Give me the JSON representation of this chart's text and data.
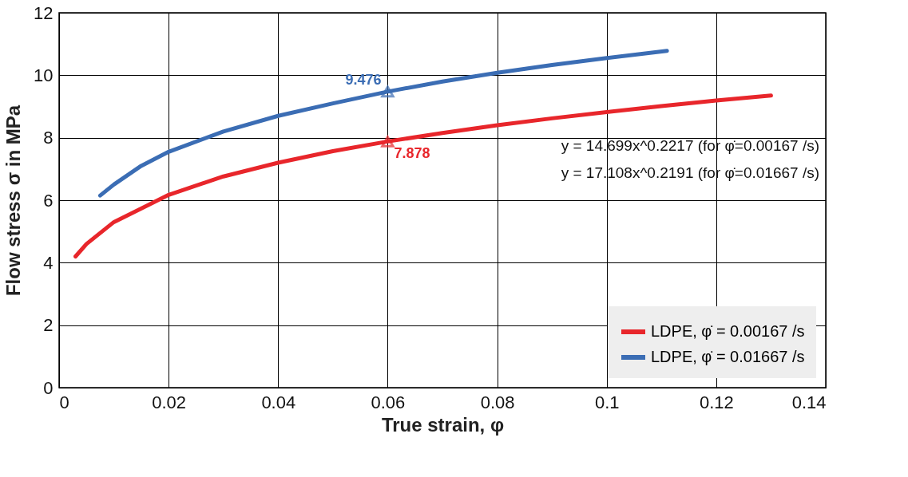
{
  "chart_data": {
    "type": "line",
    "xlabel": "True strain, φ",
    "ylabel": "Flow stress σ in MPa",
    "xlim": [
      0,
      0.14
    ],
    "xticks": [
      0,
      0.02,
      0.04,
      0.06,
      0.08,
      0.1,
      0.12,
      0.14
    ],
    "ylim": [
      0,
      12
    ],
    "yticks": [
      0,
      2,
      4,
      6,
      8,
      10,
      12
    ],
    "grid": true,
    "legend": "bottom right",
    "line_style": "solid",
    "series": [
      {
        "name": "LDPE, φ̇ = 0.00167 /s",
        "color": "#e8262b",
        "x": [
          0.003,
          0.005,
          0.01,
          0.02,
          0.03,
          0.04,
          0.05,
          0.06,
          0.07,
          0.08,
          0.09,
          0.1,
          0.11,
          0.12,
          0.13
        ],
        "values": [
          4.2,
          4.6,
          5.3,
          6.17,
          6.76,
          7.2,
          7.57,
          7.88,
          8.15,
          8.4,
          8.62,
          8.82,
          9.01,
          9.19,
          9.35
        ]
      },
      {
        "name": "LDPE, φ̇ = 0.01667 /s",
        "color": "#3b6db4",
        "x": [
          0.0075,
          0.01,
          0.015,
          0.02,
          0.03,
          0.04,
          0.05,
          0.06,
          0.07,
          0.08,
          0.09,
          0.1,
          0.111
        ],
        "values": [
          6.15,
          6.5,
          7.1,
          7.55,
          8.2,
          8.7,
          9.1,
          9.476,
          9.8,
          10.08,
          10.33,
          10.55,
          10.78
        ]
      },
      {
        "type": "scatter",
        "marker": "triangle",
        "color": "#3b6db4",
        "x": [
          0.06
        ],
        "values": [
          9.476
        ]
      },
      {
        "type": "scatter",
        "marker": "triangle",
        "color": "#e8262b",
        "x": [
          0.06
        ],
        "values": [
          7.878
        ]
      }
    ],
    "annotations": [
      {
        "text": "9.476",
        "x": 0.06,
        "y": 9.476
      },
      {
        "text": "7.878",
        "x": 0.06,
        "y": 7.878
      },
      "y = 14.699x^0.2217 (for φ̇=0.00167 /s)",
      "y = 17.108x^0.2191 (for φ̇=0.01667 /s)"
    ]
  }
}
